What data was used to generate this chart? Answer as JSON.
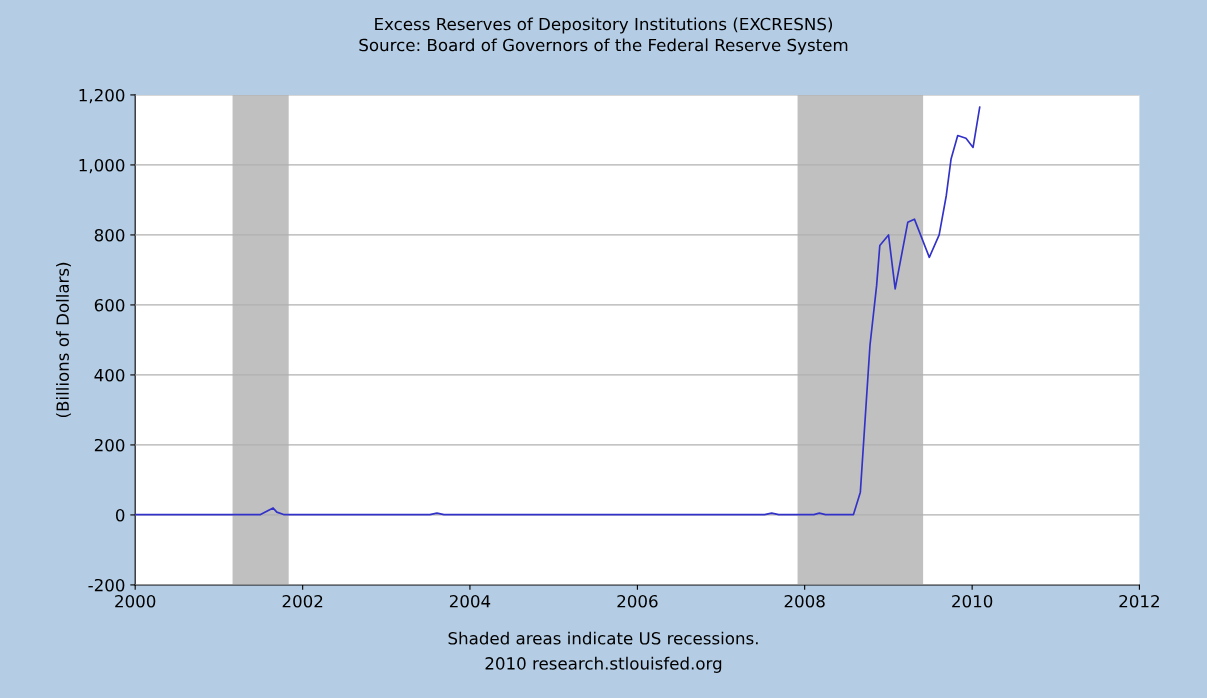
{
  "chart_data": {
    "type": "line",
    "title": "Excess Reserves of Depository Institutions (EXCRESNS)",
    "subtitle": "Source: Board of Governors of the Federal Reserve System",
    "ylabel": "(Billions of Dollars)",
    "x": [
      "2000-01-01",
      "2001-07-01",
      "2001-08-25",
      "2001-09-10",
      "2001-10-10",
      "2003-07-10",
      "2003-08-10",
      "2003-09-10",
      "2007-07-10",
      "2007-08-10",
      "2007-09-10",
      "2008-02-10",
      "2008-03-05",
      "2008-04-01",
      "2008-08-01",
      "2008-08-31",
      "2008-10-12",
      "2008-11-10",
      "2008-11-24",
      "2009-01-01",
      "2009-01-30",
      "2009-03-26",
      "2009-04-24",
      "2009-06-28",
      "2009-08-10",
      "2009-09-10",
      "2009-10-01",
      "2009-10-30",
      "2009-12-05",
      "2010-01-05",
      "2010-02-03"
    ],
    "series": [
      {
        "color": "#3232c8",
        "values": [
          1,
          1,
          20,
          8,
          1,
          1,
          5,
          1,
          1,
          5,
          1,
          1,
          5,
          1,
          1,
          65,
          484,
          655,
          770,
          800,
          646,
          836,
          845,
          736,
          800,
          912,
          1017,
          1084,
          1076,
          1050,
          1165
        ]
      }
    ],
    "xlim": [
      "2000",
      "2012"
    ],
    "xticks": [
      "2000",
      "2002",
      "2004",
      "2006",
      "2008",
      "2010",
      "2012"
    ],
    "ylim": [
      -200,
      1200
    ],
    "yticks": [
      {
        "value": -200,
        "label": "-200"
      },
      0,
      200,
      400,
      600,
      800,
      {
        "value": 1000,
        "label": "1,000"
      },
      {
        "value": 1200,
        "label": "1,200"
      }
    ],
    "grid": "y",
    "legend": false,
    "bands": [
      {
        "axis": "x",
        "from": "2001-03",
        "to": "2001-11",
        "color": "#c0c0c0"
      },
      {
        "axis": "x",
        "from": "2007-12",
        "to": "2009-06",
        "color": "#c0c0c0"
      }
    ],
    "annotations": [
      "Shaded areas indicate US recessions.",
      "2010 research.stlouisfed.org"
    ]
  }
}
